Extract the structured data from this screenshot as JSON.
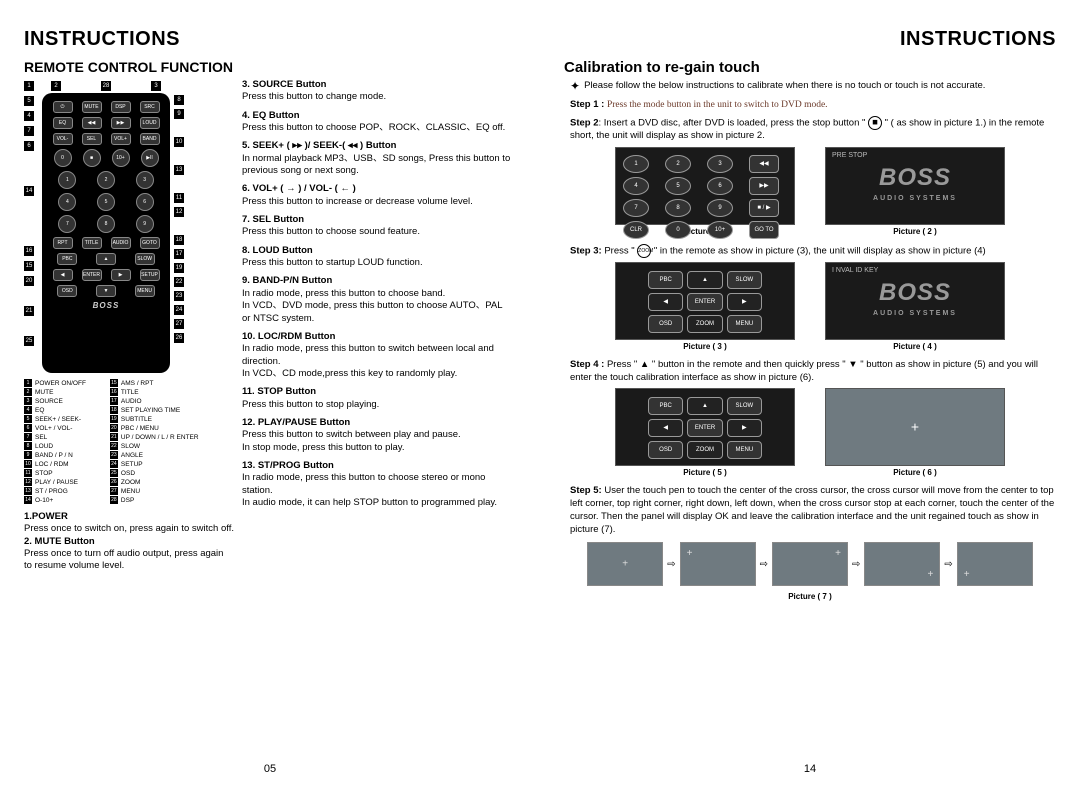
{
  "hdr": "INSTRUCTIONS",
  "left": {
    "sub": "REMOTE CONTROL FUNCTION",
    "pnum": "05",
    "callouts_top": [
      "2",
      "28",
      "3"
    ],
    "callouts_left": [
      [
        "1"
      ],
      [
        "5"
      ],
      [
        "4"
      ],
      [
        "7"
      ],
      [
        "6"
      ],
      [
        ""
      ],
      [
        ""
      ],
      [
        "14"
      ],
      [
        ""
      ],
      [
        ""
      ],
      [
        ""
      ],
      [
        "16"
      ],
      [
        "15"
      ],
      [
        "20"
      ],
      [
        ""
      ],
      [
        "21"
      ],
      [
        ""
      ],
      [
        "25"
      ]
    ],
    "callouts_right": [
      [
        ""
      ],
      [
        "8"
      ],
      [
        "9"
      ],
      [
        ""
      ],
      [
        "10"
      ],
      [
        ""
      ],
      [
        "13"
      ],
      [
        ""
      ],
      [
        "11"
      ],
      [
        "12"
      ],
      [
        ""
      ],
      [
        "18"
      ],
      [
        "17"
      ],
      [
        "19"
      ],
      [
        "22"
      ],
      [
        "23"
      ],
      [
        "24"
      ],
      [
        "27"
      ],
      [
        "26"
      ]
    ],
    "remote_logo": "BOSS",
    "legend_a": [
      {
        "n": "1",
        "t": "POWER ON/OFF"
      },
      {
        "n": "2",
        "t": "MUTE"
      },
      {
        "n": "3",
        "t": "SOURCE"
      },
      {
        "n": "4",
        "t": "EQ"
      },
      {
        "n": "5",
        "t": "SEEK+ / SEEK-"
      },
      {
        "n": "6",
        "t": "VOL+ / VOL-"
      },
      {
        "n": "7",
        "t": "SEL"
      },
      {
        "n": "8",
        "t": "LOUD"
      },
      {
        "n": "9",
        "t": "BAND / P / N"
      },
      {
        "n": "10",
        "t": "LOC / RDM"
      },
      {
        "n": "11",
        "t": "STOP"
      },
      {
        "n": "12",
        "t": "PLAY / PAUSE"
      },
      {
        "n": "13",
        "t": "ST / PROG"
      },
      {
        "n": "14",
        "t": "O-10+"
      }
    ],
    "legend_b": [
      {
        "n": "15",
        "t": "AMS / RPT"
      },
      {
        "n": "16",
        "t": "TITLE"
      },
      {
        "n": "17",
        "t": "AUDIO"
      },
      {
        "n": "18",
        "t": "SET PLAYING TIME"
      },
      {
        "n": "19",
        "t": "SUBTITLE"
      },
      {
        "n": "20",
        "t": "PBC / MENU"
      },
      {
        "n": "21",
        "t": "UP / DOWN / L / R ENTER"
      },
      {
        "n": "22",
        "t": "SLOW"
      },
      {
        "n": "23",
        "t": "ANGLE"
      },
      {
        "n": "24",
        "t": "SETUP"
      },
      {
        "n": "25",
        "t": "OSD"
      },
      {
        "n": "26",
        "t": "ZOOM"
      },
      {
        "n": "27",
        "t": "MENU"
      },
      {
        "n": "28",
        "t": "DSP"
      }
    ],
    "low": [
      {
        "t": "1.POWER",
        "d": "Press once to switch on, press again to switch off."
      },
      {
        "t": "2. MUTE Button",
        "d": "Press once to turn off audio output, press again to resume volume level."
      }
    ],
    "items": [
      {
        "t": "3. SOURCE Button",
        "d": "Press this button to change mode."
      },
      {
        "t": "4. EQ Button",
        "d": "Press this button to choose POP、ROCK、CLASSIC、EQ off."
      },
      {
        "t": "5. SEEK+ ( ▸▸ )/ SEEK-( ◂◂ ) Button",
        "d": "In normal playback MP3、USB、SD songs, Press this button to previous song or next song."
      },
      {
        "t": "6. VOL+ ( → ) / VOL- ( ← )",
        "d": "Press this button to increase or decrease volume level."
      },
      {
        "t": "7. SEL Button",
        "d": "Press this button to choose sound feature."
      },
      {
        "t": "8. LOUD Button",
        "d": "Press this button to startup LOUD function."
      },
      {
        "t": "9. BAND-P/N Button",
        "d": "In radio mode, press this button to choose band.\nIn VCD、DVD mode, press this button to choose AUTO、PAL or NTSC system."
      },
      {
        "t": "10. LOC/RDM Button",
        "d": "In radio mode, press this button to switch between local and direction.\nIn VCD、CD mode,press this key to randomly play."
      },
      {
        "t": "11. STOP Button",
        "d": "Press this button to stop playing."
      },
      {
        "t": "12. PLAY/PAUSE Button",
        "d": "Press this button to switch between play and pause.\nIn stop mode, press this button to play."
      },
      {
        "t": "13. ST/PROG Button",
        "d": "In radio mode, press this button to choose stereo or mono station.\nIn audio mode, it can help STOP button to programmed play."
      }
    ]
  },
  "right": {
    "sub": "Calibration to re-gain touch",
    "pnum": "14",
    "bullet": "Please follow the below instructions to calibrate when there is no touch or touch is not accurate.",
    "step1_b": "Step 1 :",
    "step1_t": "Press the mode button in the unit to switch to DVD mode.",
    "step2_b": "Step 2",
    "step2_t": ": Insert a DVD disc, after DVD is loaded, press the stop button \"",
    "step2_t2": "\" ( as show in picture 1.) in the remote short, the unit will display as show in picture 2.",
    "stop_icon": "◼",
    "step3_b": "Step 3:",
    "step3_t": " Press \"",
    "step3_t2": "\" in the remote as show in picture (3), the unit will display as show in picture (4)",
    "zoom_icon": "ZOOM",
    "step4_b": "Step 4 :",
    "step4_t": "Press \" ▲ \" button in the remote and then quickly press \" ▼ \" button as show in picture (5) and you will enter the touch calibration interface as show in picture (6).",
    "step5_b": "Step 5:",
    "step5_t": " User the touch pen to touch the center of the cross cursor, the cross cursor will move from the center to top left corner, top right corner, right down, left down, when the cross cursor stop at each corner, touch the center of the cursor. Then the panel will display OK and leave the calibration interface and the unit regained touch as show in picture (7).",
    "pic1": "Picture ( 1 )",
    "pic2": "Picture ( 2 )",
    "pic3": "Picture ( 3 )",
    "pic4": "Picture ( 4 )",
    "pic5": "Picture ( 5 )",
    "pic6": "Picture ( 6 )",
    "pic7": "Picture ( 7 )",
    "prestop": "PRE  STOP",
    "invalid": "I NVAL ID KEY",
    "keypad1": [
      "1",
      "2",
      "3",
      "◀◀",
      "4",
      "5",
      "6",
      "▶▶",
      "7",
      "8",
      "9",
      "■ / ▶",
      "CLR",
      "0",
      "10+",
      "GO TO"
    ],
    "navpad": [
      "PBC",
      "▲",
      "SLOW",
      "◀",
      "ENTER",
      "▶",
      "OSD",
      "ZOOM",
      "MENU"
    ],
    "boss": "BOSS",
    "audiosys": "AUDIO SYSTEMS"
  }
}
